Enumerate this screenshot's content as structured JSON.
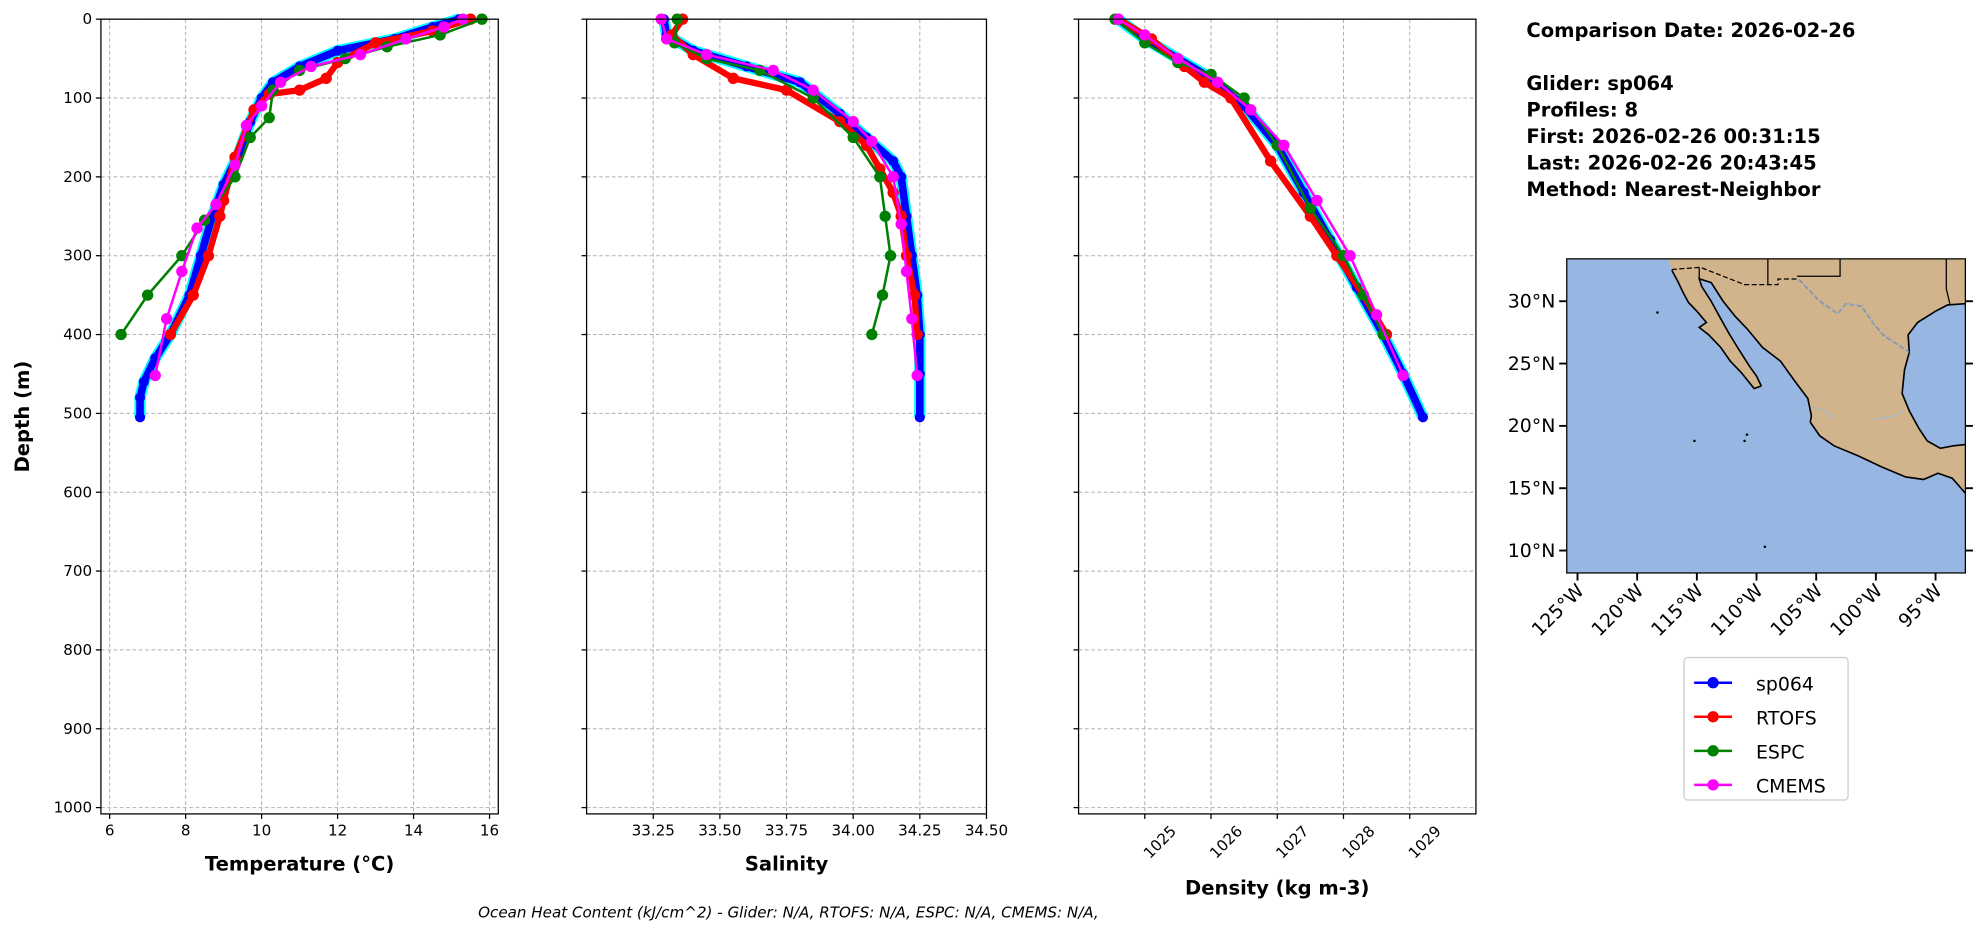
{
  "chart_data": [
    {
      "type": "line",
      "xlabel": "Temperature (°C)",
      "ylabel": "Depth (m)",
      "xlim": [
        5.77,
        16.23
      ],
      "ylim": [
        1008,
        0
      ],
      "xticks": [
        6,
        8,
        10,
        12,
        14,
        16
      ],
      "yticks": [
        0,
        100,
        200,
        300,
        400,
        500,
        600,
        700,
        800,
        900,
        1000
      ],
      "grid": true,
      "series": [
        {
          "name": "sp064",
          "color": "#0000ff",
          "points": [
            [
              15.2,
              0
            ],
            [
              14.5,
              10
            ],
            [
              13.5,
              25
            ],
            [
              12,
              40
            ],
            [
              11,
              60
            ],
            [
              10.3,
              80
            ],
            [
              10,
              100
            ],
            [
              9.7,
              130
            ],
            [
              9.4,
              170
            ],
            [
              9,
              210
            ],
            [
              8.7,
              250
            ],
            [
              8.4,
              300
            ],
            [
              8.1,
              350
            ],
            [
              7.6,
              400
            ],
            [
              7.2,
              430
            ],
            [
              6.9,
              460
            ],
            [
              6.8,
              480
            ],
            [
              6.8,
              505
            ]
          ]
        },
        {
          "name": "RTOFS",
          "color": "#ff0000",
          "points": [
            [
              15.5,
              0
            ],
            [
              14.5,
              15
            ],
            [
              13,
              30
            ],
            [
              12,
              55
            ],
            [
              11.7,
              75
            ],
            [
              11,
              90
            ],
            [
              10.2,
              95
            ],
            [
              9.8,
              115
            ],
            [
              9.3,
              175
            ],
            [
              9,
              230
            ],
            [
              8.9,
              250
            ],
            [
              8.6,
              300
            ],
            [
              8.2,
              350
            ],
            [
              7.6,
              400
            ]
          ]
        },
        {
          "name": "ESPC",
          "color": "#008000",
          "points": [
            [
              15.8,
              0
            ],
            [
              14.7,
              20
            ],
            [
              13.3,
              35
            ],
            [
              12.2,
              50
            ],
            [
              11,
              65
            ],
            [
              10.3,
              90
            ],
            [
              10.2,
              125
            ],
            [
              9.7,
              150
            ],
            [
              9.3,
              200
            ],
            [
              8.5,
              255
            ],
            [
              7.9,
              300
            ],
            [
              7,
              350
            ],
            [
              6.3,
              400
            ]
          ]
        },
        {
          "name": "CMEMS",
          "color": "#ff00ff",
          "points": [
            [
              15.3,
              0
            ],
            [
              14.8,
              10
            ],
            [
              13.8,
              25
            ],
            [
              12.6,
              45
            ],
            [
              11.3,
              60
            ],
            [
              10.5,
              80
            ],
            [
              10,
              110
            ],
            [
              9.6,
              135
            ],
            [
              9.3,
              185
            ],
            [
              8.8,
              235
            ],
            [
              8.3,
              265
            ],
            [
              7.9,
              320
            ],
            [
              7.5,
              380
            ],
            [
              7.2,
              452
            ]
          ]
        }
      ]
    },
    {
      "type": "line",
      "xlabel": "Salinity",
      "xlim": [
        33.0,
        34.5
      ],
      "ylim": [
        1008,
        0
      ],
      "xticks": [
        "33.25",
        "33.50",
        "33.75",
        "34.00",
        "34.25",
        "34.50"
      ],
      "grid": true,
      "series": [
        {
          "name": "sp064",
          "color": "#0000ff",
          "points": [
            [
              33.29,
              0
            ],
            [
              33.3,
              20
            ],
            [
              33.4,
              40
            ],
            [
              33.6,
              60
            ],
            [
              33.8,
              80
            ],
            [
              33.95,
              120
            ],
            [
              34.05,
              150
            ],
            [
              34.15,
              180
            ],
            [
              34.18,
              200
            ],
            [
              34.2,
              250
            ],
            [
              34.22,
              300
            ],
            [
              34.24,
              350
            ],
            [
              34.25,
              400
            ],
            [
              34.25,
              450
            ],
            [
              34.25,
              505
            ]
          ]
        },
        {
          "name": "RTOFS",
          "color": "#ff0000",
          "points": [
            [
              33.36,
              0
            ],
            [
              33.32,
              20
            ],
            [
              33.4,
              45
            ],
            [
              33.55,
              75
            ],
            [
              33.75,
              90
            ],
            [
              33.95,
              130
            ],
            [
              34.05,
              160
            ],
            [
              34.1,
              190
            ],
            [
              34.15,
              220
            ],
            [
              34.18,
              250
            ],
            [
              34.2,
              300
            ],
            [
              34.23,
              350
            ],
            [
              34.24,
              400
            ]
          ]
        },
        {
          "name": "ESPC",
          "color": "#008000",
          "points": [
            [
              33.34,
              0
            ],
            [
              33.33,
              30
            ],
            [
              33.45,
              50
            ],
            [
              33.65,
              65
            ],
            [
              33.85,
              100
            ],
            [
              34.0,
              150
            ],
            [
              34.1,
              200
            ],
            [
              34.12,
              250
            ],
            [
              34.14,
              300
            ],
            [
              34.11,
              350
            ],
            [
              34.07,
              400
            ]
          ]
        },
        {
          "name": "CMEMS",
          "color": "#ff00ff",
          "points": [
            [
              33.28,
              0
            ],
            [
              33.3,
              25
            ],
            [
              33.45,
              45
            ],
            [
              33.7,
              65
            ],
            [
              33.85,
              90
            ],
            [
              34.0,
              130
            ],
            [
              34.07,
              155
            ],
            [
              34.15,
              200
            ],
            [
              34.18,
              260
            ],
            [
              34.2,
              320
            ],
            [
              34.22,
              380
            ],
            [
              34.24,
              452
            ]
          ]
        }
      ]
    },
    {
      "type": "line",
      "xlabel": "Density (kg m-3)",
      "xlim": [
        1024.0,
        1030.0
      ],
      "ylim": [
        1008,
        0
      ],
      "xticks": [
        1025,
        1026,
        1027,
        1028,
        1029
      ],
      "grid": true,
      "series": [
        {
          "name": "sp064",
          "color": "#0000ff",
          "points": [
            [
              1024.6,
              0
            ],
            [
              1025,
              25
            ],
            [
              1025.5,
              50
            ],
            [
              1026,
              75
            ],
            [
              1026.5,
              110
            ],
            [
              1027,
              160
            ],
            [
              1027.4,
              220
            ],
            [
              1027.8,
              280
            ],
            [
              1028.2,
              340
            ],
            [
              1028.6,
              400
            ],
            [
              1028.9,
              450
            ],
            [
              1029.2,
              505
            ]
          ]
        },
        {
          "name": "RTOFS",
          "color": "#ff0000",
          "points": [
            [
              1024.6,
              0
            ],
            [
              1025.1,
              25
            ],
            [
              1025.6,
              60
            ],
            [
              1025.9,
              80
            ],
            [
              1026.3,
              100
            ],
            [
              1026.9,
              180
            ],
            [
              1027.5,
              250
            ],
            [
              1027.9,
              300
            ],
            [
              1028.3,
              350
            ],
            [
              1028.65,
              400
            ]
          ]
        },
        {
          "name": "ESPC",
          "color": "#008000",
          "points": [
            [
              1024.55,
              0
            ],
            [
              1025,
              30
            ],
            [
              1025.5,
              55
            ],
            [
              1026,
              70
            ],
            [
              1026.5,
              100
            ],
            [
              1027,
              160
            ],
            [
              1027.5,
              240
            ],
            [
              1028,
              300
            ],
            [
              1028.3,
              350
            ],
            [
              1028.6,
              400
            ]
          ]
        },
        {
          "name": "CMEMS",
          "color": "#ff00ff",
          "points": [
            [
              1024.6,
              0
            ],
            [
              1025,
              20
            ],
            [
              1025.5,
              50
            ],
            [
              1026.1,
              80
            ],
            [
              1026.6,
              115
            ],
            [
              1027.1,
              160
            ],
            [
              1027.6,
              230
            ],
            [
              1028.1,
              300
            ],
            [
              1028.5,
              375
            ],
            [
              1028.9,
              452
            ]
          ]
        }
      ]
    }
  ],
  "info": {
    "lines": [
      "Comparison Date: 2026-02-26",
      "",
      "Glider: sp064",
      "Profiles: 8",
      "First: 2026-02-26 00:31:15",
      "Last: 2026-02-26 20:43:45",
      "Method: Nearest-Neighbor"
    ]
  },
  "map": {
    "lon_range": [
      -125.9,
      -92.5
    ],
    "lat_range": [
      8.2,
      33.4
    ],
    "lon_ticks": [
      "125°W",
      "120°W",
      "115°W",
      "110°W",
      "105°W",
      "100°W",
      "95°W"
    ],
    "lat_ticks": [
      "10°N",
      "15°N",
      "20°N",
      "25°N",
      "30°N"
    ],
    "ocean_color": "#97b6e1",
    "land_color": "#d2b48c"
  },
  "legend": {
    "entries": [
      {
        "label": "sp064",
        "color": "#0000ff"
      },
      {
        "label": "RTOFS",
        "color": "#ff0000"
      },
      {
        "label": "ESPC",
        "color": "#008000"
      },
      {
        "label": "CMEMS",
        "color": "#ff00ff"
      }
    ]
  },
  "footer": "Ocean Heat Content (kJ/cm^2) - Glider: N/A,  RTOFS: N/A,  ESPC: N/A,  CMEMS: N/A,"
}
